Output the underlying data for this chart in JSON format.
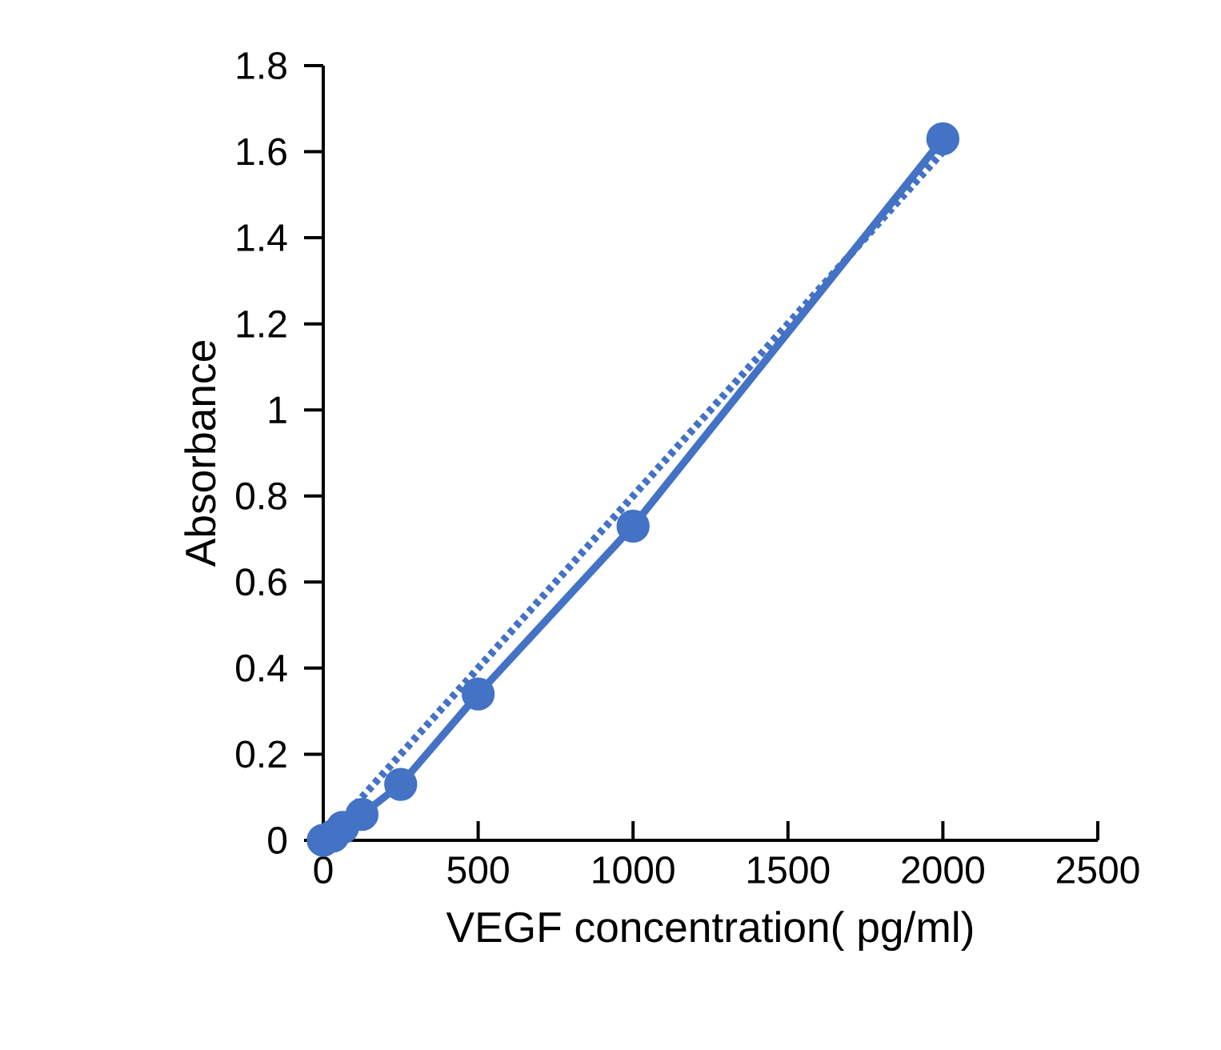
{
  "chart_data": {
    "type": "line",
    "xlabel": "VEGF concentration( pg/ml)",
    "ylabel": "Absorbance",
    "xlim": [
      0,
      2500
    ],
    "xticks": [
      0,
      500,
      1000,
      1500,
      2000,
      2500
    ],
    "ylim": [
      0,
      1.8
    ],
    "yticks": [
      0,
      0.2,
      0.4,
      0.6,
      0.8,
      1,
      1.2,
      1.4,
      1.6,
      1.8
    ],
    "grid": false,
    "legend": false,
    "series": [
      {
        "x": [
          0,
          2000
        ],
        "values": [
          0,
          1.6
        ],
        "color": "#4472c4",
        "line_style": "dotted"
      },
      {
        "x": [
          0,
          31.25,
          62.5,
          125,
          250,
          500,
          1000,
          2000
        ],
        "values": [
          0,
          0.01,
          0.03,
          0.06,
          0.13,
          0.34,
          0.73,
          1.63
        ],
        "color": "#4472c4",
        "line_style": "solid",
        "marker": "circle"
      }
    ]
  }
}
